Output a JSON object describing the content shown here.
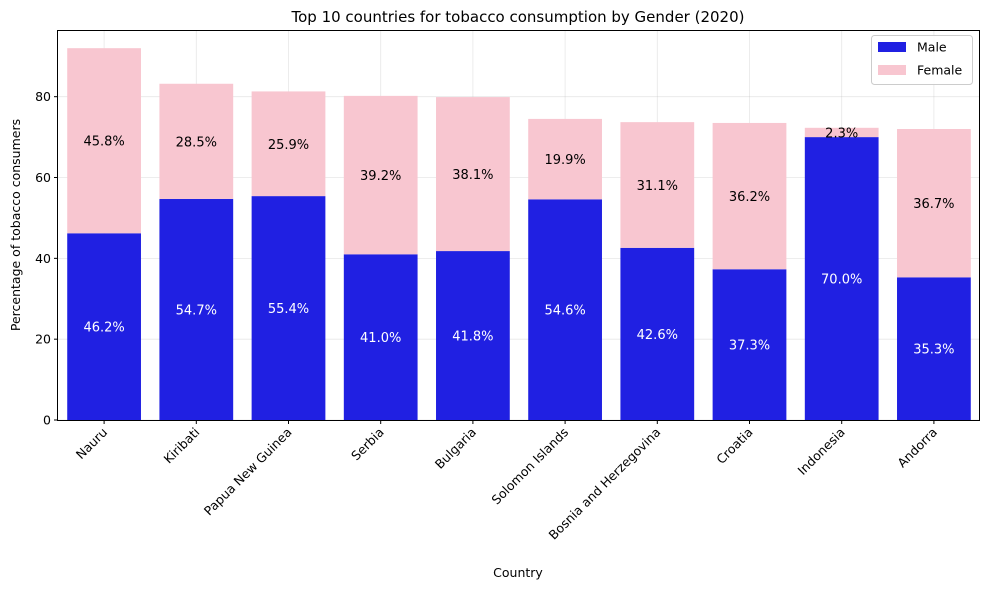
{
  "chart_data": {
    "type": "bar",
    "stacked": true,
    "title": "Top 10 countries for tobacco consumption by Gender (2020)",
    "xlabel": "Country",
    "ylabel": "Percentage of tobacco consumers",
    "ylim": [
      0,
      96.5
    ],
    "yticks": [
      0,
      20,
      40,
      60,
      80
    ],
    "grid": true,
    "legend_position": "top-right",
    "categories": [
      "Nauru",
      "Kiribati",
      "Papua New Guinea",
      "Serbia",
      "Bulgaria",
      "Solomon Islands",
      "Bosnia and Herzegovina",
      "Croatia",
      "Indonesia",
      "Andorra"
    ],
    "series": [
      {
        "name": "Male",
        "color": "#2020e2",
        "label_color": "#ffffff",
        "values": [
          46.2,
          54.7,
          55.4,
          41.0,
          41.8,
          54.6,
          42.6,
          37.3,
          70.0,
          35.3
        ],
        "labels": [
          "46.2%",
          "54.7%",
          "55.4%",
          "41.0%",
          "41.8%",
          "54.6%",
          "42.6%",
          "37.3%",
          "70.0%",
          "35.3%"
        ]
      },
      {
        "name": "Female",
        "color": "#f8c6d0",
        "label_color": "#000000",
        "values": [
          45.8,
          28.5,
          25.9,
          39.2,
          38.1,
          19.9,
          31.1,
          36.2,
          2.3,
          36.7
        ],
        "labels": [
          "45.8%",
          "28.5%",
          "25.9%",
          "39.2%",
          "38.1%",
          "19.9%",
          "31.1%",
          "36.2%",
          "2.3%",
          "36.7%"
        ]
      }
    ]
  }
}
